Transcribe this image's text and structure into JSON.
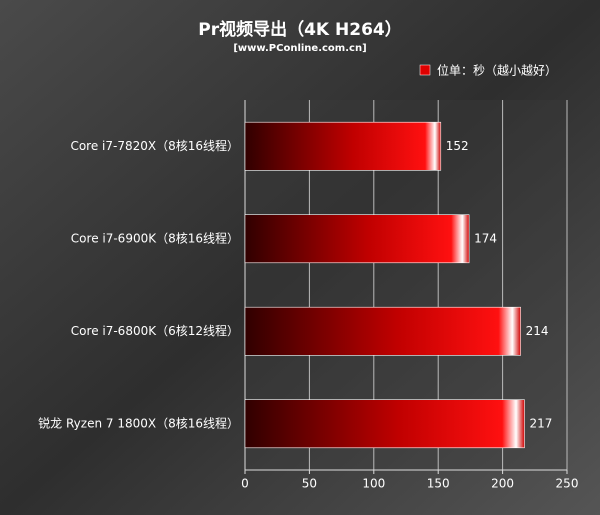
{
  "chart_data": {
    "type": "bar",
    "orientation": "horizontal",
    "title": "Pr视频导出（4K H264）",
    "subtitle": "[www.PConline.com.cn]",
    "legend": "位单：秒（越小越好）",
    "categories": [
      "Core i7-7820X（8核16线程）",
      "Core i7-6900K（8核16线程）",
      "Core i7-6800K（6核12线程）",
      "锐龙 Ryzen 7 1800X（8核16线程）"
    ],
    "values": [
      152,
      174,
      214,
      217
    ],
    "color": "#e00000",
    "xlim": [
      0,
      250
    ],
    "xticks": [
      0,
      50,
      100,
      150,
      200,
      250
    ],
    "grid": true
  }
}
